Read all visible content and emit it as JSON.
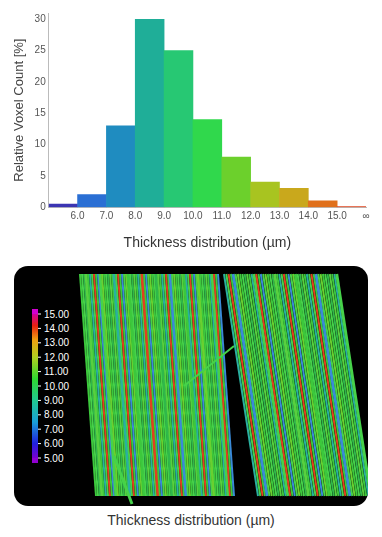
{
  "chart_data": {
    "type": "histogram",
    "x_label": "Thickness distribution (µm)",
    "y_label": "Relative Voxel Count [%]",
    "bins": [
      5,
      6,
      7,
      8,
      9,
      10,
      11,
      12,
      13,
      14,
      15,
      16
    ],
    "values": [
      0.5,
      2,
      13,
      30,
      25,
      14,
      8,
      4,
      3,
      1,
      0.1
    ],
    "colors": [
      "#3b35b3",
      "#2a6fd4",
      "#1f8cc0",
      "#1fae98",
      "#27c873",
      "#30d84c",
      "#6cd02c",
      "#a8c420",
      "#c9a81c",
      "#e0701c",
      "#e0461f"
    ],
    "xlim": [
      5,
      16
    ],
    "xticks": [
      {
        "value": 6,
        "label": "6.0"
      },
      {
        "value": 7,
        "label": "7.0"
      },
      {
        "value": 8,
        "label": "8.0"
      },
      {
        "value": 9,
        "label": "9.0"
      },
      {
        "value": 10,
        "label": "10.0"
      },
      {
        "value": 11,
        "label": "11.0"
      },
      {
        "value": 12,
        "label": "12.0"
      },
      {
        "value": 13,
        "label": "13.0"
      },
      {
        "value": 14,
        "label": "14.0"
      },
      {
        "value": 15,
        "label": "15.0"
      },
      {
        "value": 16,
        "label": "∞"
      }
    ],
    "ylim": [
      0,
      31
    ],
    "yticks": [
      0,
      5,
      10,
      15,
      20,
      25,
      30
    ],
    "grid": false
  },
  "image_panel": {
    "caption": "Thickness distribution (µm)",
    "colorbar": {
      "range": [
        5,
        15
      ],
      "ticks": [
        {
          "value": 5,
          "label": "5.00"
        },
        {
          "value": 6,
          "label": "6.00"
        },
        {
          "value": 7,
          "label": "7.00"
        },
        {
          "value": 8,
          "label": "8.00"
        },
        {
          "value": 9,
          "label": "9.00"
        },
        {
          "value": 10,
          "label": "10.00"
        },
        {
          "value": 11,
          "label": "11.00"
        },
        {
          "value": 12,
          "label": "12.00"
        },
        {
          "value": 13,
          "label": "13.00"
        },
        {
          "value": 14,
          "label": "14.00"
        },
        {
          "value": 15,
          "label": "15.00"
        }
      ]
    }
  }
}
